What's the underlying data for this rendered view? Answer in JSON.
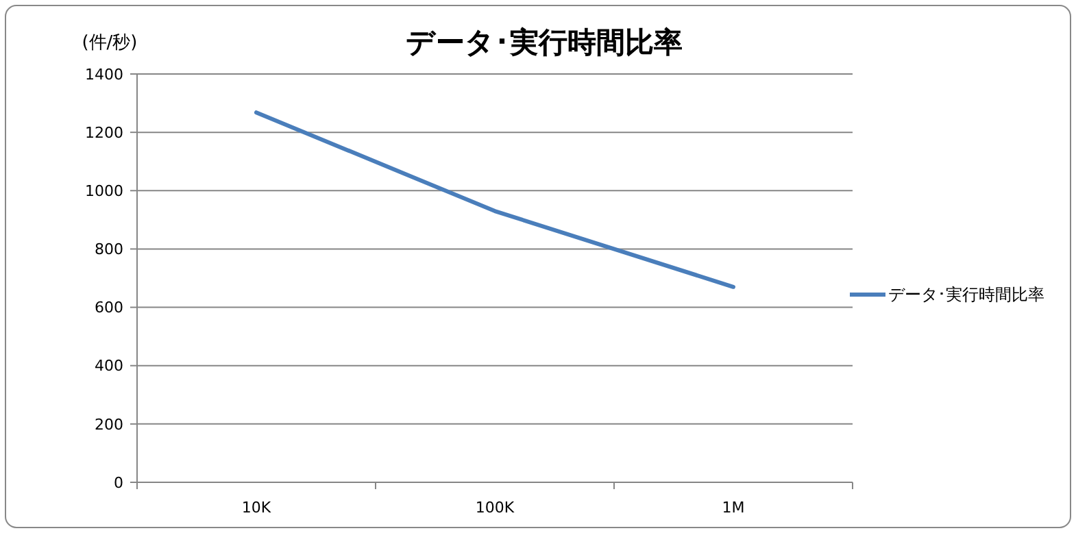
{
  "chart_data": {
    "type": "line",
    "title": "データ･実行時間比率",
    "ylabel": "(件/秒)",
    "categories": [
      "10K",
      "100K",
      "1M"
    ],
    "series": [
      {
        "name": "データ･実行時間比率",
        "color": "#4a7ebb",
        "values": [
          1268,
          930,
          670
        ]
      }
    ],
    "ylim": [
      0,
      1400
    ],
    "yticks": [
      0,
      200,
      400,
      600,
      800,
      1000,
      1200,
      1400
    ],
    "grid": "y",
    "legend": "right",
    "marker": "none",
    "line_style": "solid"
  }
}
